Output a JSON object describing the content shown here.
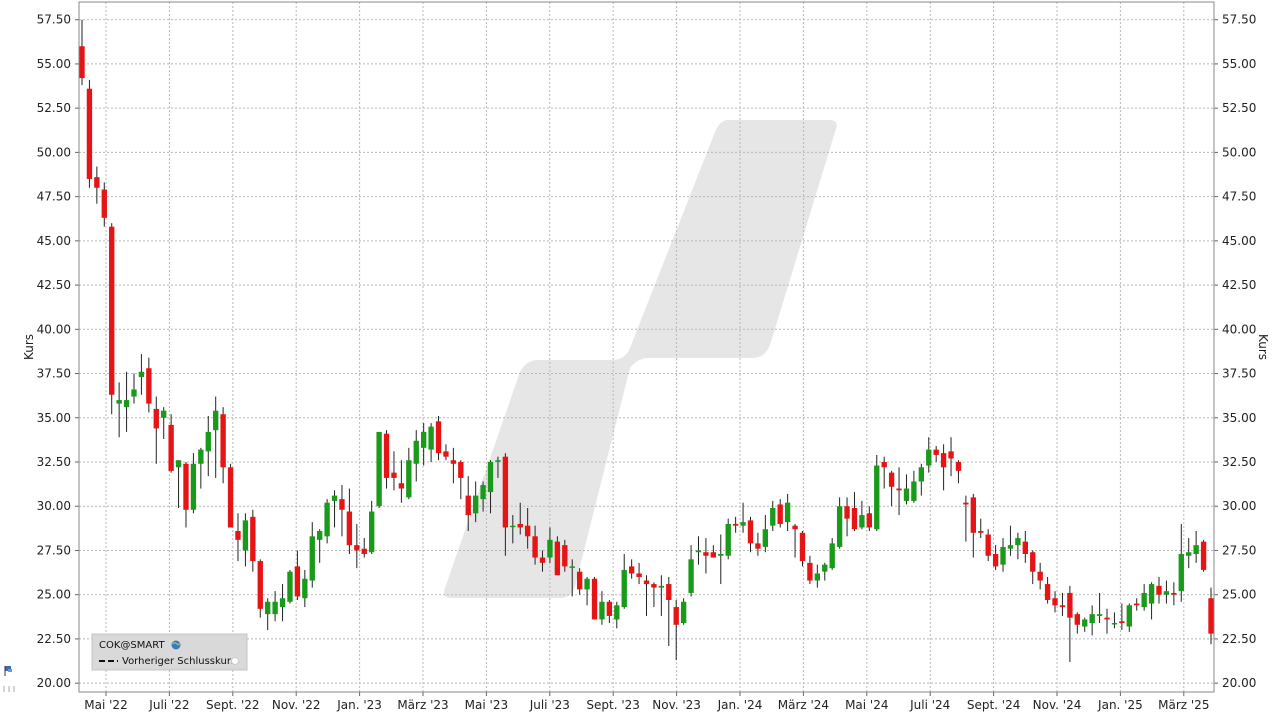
{
  "chart_data": {
    "type": "candlestick",
    "symbol": "COK@SMART",
    "ylabel": "Kurs",
    "ylim": [
      19.5,
      58.5
    ],
    "y_ticks": [
      "20.00",
      "22.50",
      "25.00",
      "27.50",
      "30.00",
      "32.50",
      "35.00",
      "37.50",
      "40.00",
      "42.50",
      "45.00",
      "47.50",
      "50.00",
      "52.50",
      "55.00",
      "57.50"
    ],
    "x_ticks": [
      "Mai '22",
      "Juli '22",
      "Sept. '22",
      "Nov. '22",
      "Jan. '23",
      "März '23",
      "Mai '23",
      "Juli '23",
      "Sept. '23",
      "Nov. '23",
      "Jan. '24",
      "März '24",
      "Mai '24",
      "Juli '24",
      "Sept. '24",
      "Nov. '24",
      "Jan. '25",
      "März '25"
    ],
    "legend": [
      "COK@SMART",
      "Vorheriger Schlusskurs"
    ],
    "grid": true,
    "up_color": "#1a9a1a",
    "down_color": "#e61414",
    "candles": [
      {
        "o": 56.0,
        "h": 57.5,
        "l": 53.8,
        "c": 54.2
      },
      {
        "o": 53.6,
        "h": 54.1,
        "l": 48.0,
        "c": 48.5
      },
      {
        "o": 48.6,
        "h": 49.2,
        "l": 47.1,
        "c": 48.0
      },
      {
        "o": 47.9,
        "h": 48.3,
        "l": 45.8,
        "c": 46.3
      },
      {
        "o": 45.8,
        "h": 46.0,
        "l": 35.2,
        "c": 36.3
      },
      {
        "o": 35.8,
        "h": 37.0,
        "l": 33.9,
        "c": 36.0
      },
      {
        "o": 35.6,
        "h": 37.6,
        "l": 34.2,
        "c": 36.0
      },
      {
        "o": 36.2,
        "h": 37.5,
        "l": 35.8,
        "c": 36.6
      },
      {
        "o": 37.3,
        "h": 38.6,
        "l": 36.3,
        "c": 37.6
      },
      {
        "o": 37.8,
        "h": 38.4,
        "l": 35.3,
        "c": 35.8
      },
      {
        "o": 35.5,
        "h": 36.2,
        "l": 32.4,
        "c": 34.4
      },
      {
        "o": 35.0,
        "h": 35.6,
        "l": 33.8,
        "c": 35.4
      },
      {
        "o": 34.6,
        "h": 35.2,
        "l": 31.9,
        "c": 32.0
      },
      {
        "o": 32.2,
        "h": 32.6,
        "l": 29.9,
        "c": 32.6
      },
      {
        "o": 32.4,
        "h": 32.5,
        "l": 28.8,
        "c": 29.8
      },
      {
        "o": 29.8,
        "h": 33.0,
        "l": 29.6,
        "c": 32.4
      },
      {
        "o": 32.4,
        "h": 33.3,
        "l": 31.0,
        "c": 33.2
      },
      {
        "o": 33.1,
        "h": 35.1,
        "l": 31.7,
        "c": 34.2
      },
      {
        "o": 34.3,
        "h": 36.2,
        "l": 31.6,
        "c": 35.4
      },
      {
        "o": 35.2,
        "h": 35.6,
        "l": 31.3,
        "c": 32.2
      },
      {
        "o": 32.2,
        "h": 32.4,
        "l": 28.8,
        "c": 28.8
      },
      {
        "o": 28.6,
        "h": 29.6,
        "l": 26.9,
        "c": 28.1
      },
      {
        "o": 27.5,
        "h": 29.6,
        "l": 26.6,
        "c": 29.2
      },
      {
        "o": 29.4,
        "h": 29.8,
        "l": 26.3,
        "c": 26.9
      },
      {
        "o": 26.9,
        "h": 27.0,
        "l": 23.7,
        "c": 24.2
      },
      {
        "o": 23.9,
        "h": 24.8,
        "l": 23.0,
        "c": 24.6
      },
      {
        "o": 23.9,
        "h": 25.2,
        "l": 23.5,
        "c": 24.6
      },
      {
        "o": 24.3,
        "h": 25.6,
        "l": 23.5,
        "c": 24.8
      },
      {
        "o": 24.6,
        "h": 26.4,
        "l": 24.5,
        "c": 26.3
      },
      {
        "o": 26.6,
        "h": 27.5,
        "l": 24.7,
        "c": 24.9
      },
      {
        "o": 24.8,
        "h": 26.4,
        "l": 24.3,
        "c": 25.9
      },
      {
        "o": 25.8,
        "h": 29.1,
        "l": 25.4,
        "c": 28.3
      },
      {
        "o": 28.1,
        "h": 28.7,
        "l": 26.8,
        "c": 28.6
      },
      {
        "o": 28.3,
        "h": 30.4,
        "l": 27.9,
        "c": 30.2
      },
      {
        "o": 30.3,
        "h": 30.9,
        "l": 28.8,
        "c": 30.6
      },
      {
        "o": 30.4,
        "h": 31.2,
        "l": 28.3,
        "c": 29.8
      },
      {
        "o": 29.7,
        "h": 31.0,
        "l": 27.3,
        "c": 27.8
      },
      {
        "o": 27.8,
        "h": 29.0,
        "l": 26.5,
        "c": 27.5
      },
      {
        "o": 27.6,
        "h": 28.2,
        "l": 27.1,
        "c": 27.3
      },
      {
        "o": 27.4,
        "h": 30.3,
        "l": 27.3,
        "c": 29.7
      },
      {
        "o": 30.0,
        "h": 34.2,
        "l": 29.9,
        "c": 34.2
      },
      {
        "o": 34.1,
        "h": 34.3,
        "l": 31.0,
        "c": 31.6
      },
      {
        "o": 31.9,
        "h": 33.1,
        "l": 30.9,
        "c": 31.6
      },
      {
        "o": 31.3,
        "h": 32.6,
        "l": 30.2,
        "c": 31.0
      },
      {
        "o": 30.5,
        "h": 33.3,
        "l": 30.4,
        "c": 32.6
      },
      {
        "o": 32.4,
        "h": 34.3,
        "l": 31.4,
        "c": 33.7
      },
      {
        "o": 33.3,
        "h": 34.7,
        "l": 32.3,
        "c": 34.2
      },
      {
        "o": 33.2,
        "h": 34.7,
        "l": 32.5,
        "c": 34.5
      },
      {
        "o": 34.8,
        "h": 35.1,
        "l": 32.6,
        "c": 33.0
      },
      {
        "o": 33.1,
        "h": 33.5,
        "l": 32.6,
        "c": 32.8
      },
      {
        "o": 32.6,
        "h": 33.3,
        "l": 31.3,
        "c": 32.4
      },
      {
        "o": 32.5,
        "h": 32.6,
        "l": 30.4,
        "c": 31.6
      },
      {
        "o": 30.6,
        "h": 31.7,
        "l": 28.6,
        "c": 29.5
      },
      {
        "o": 29.6,
        "h": 31.4,
        "l": 29.1,
        "c": 30.6
      },
      {
        "o": 30.4,
        "h": 31.4,
        "l": 29.7,
        "c": 31.2
      },
      {
        "o": 30.8,
        "h": 32.6,
        "l": 29.6,
        "c": 32.5
      },
      {
        "o": 32.6,
        "h": 32.8,
        "l": 31.6,
        "c": 32.6
      },
      {
        "o": 32.8,
        "h": 33.0,
        "l": 27.2,
        "c": 28.8
      },
      {
        "o": 28.9,
        "h": 29.5,
        "l": 27.9,
        "c": 28.9
      },
      {
        "o": 29.0,
        "h": 30.2,
        "l": 28.4,
        "c": 28.8
      },
      {
        "o": 28.9,
        "h": 29.9,
        "l": 27.6,
        "c": 28.3
      },
      {
        "o": 28.3,
        "h": 28.9,
        "l": 26.7,
        "c": 27.1
      },
      {
        "o": 27.1,
        "h": 27.5,
        "l": 26.3,
        "c": 26.8
      },
      {
        "o": 27.1,
        "h": 28.8,
        "l": 26.8,
        "c": 28.1
      },
      {
        "o": 28.0,
        "h": 28.3,
        "l": 26.1,
        "c": 26.1
      },
      {
        "o": 27.8,
        "h": 28.1,
        "l": 26.3,
        "c": 26.6
      },
      {
        "o": 26.6,
        "h": 27.0,
        "l": 24.9,
        "c": 26.6
      },
      {
        "o": 26.3,
        "h": 26.5,
        "l": 25.0,
        "c": 25.3
      },
      {
        "o": 25.3,
        "h": 26.0,
        "l": 24.4,
        "c": 25.9
      },
      {
        "o": 25.9,
        "h": 26.0,
        "l": 23.6,
        "c": 23.6
      },
      {
        "o": 23.6,
        "h": 25.2,
        "l": 23.3,
        "c": 24.6
      },
      {
        "o": 24.6,
        "h": 24.7,
        "l": 23.4,
        "c": 23.8
      },
      {
        "o": 23.6,
        "h": 24.6,
        "l": 23.1,
        "c": 24.4
      },
      {
        "o": 24.3,
        "h": 27.3,
        "l": 24.2,
        "c": 26.4
      },
      {
        "o": 26.6,
        "h": 27.0,
        "l": 25.9,
        "c": 26.2
      },
      {
        "o": 26.2,
        "h": 26.8,
        "l": 25.6,
        "c": 26.0
      },
      {
        "o": 25.8,
        "h": 26.1,
        "l": 23.8,
        "c": 25.6
      },
      {
        "o": 25.6,
        "h": 25.7,
        "l": 24.3,
        "c": 25.4
      },
      {
        "o": 25.4,
        "h": 26.1,
        "l": 23.8,
        "c": 25.5
      },
      {
        "o": 25.6,
        "h": 26.0,
        "l": 22.1,
        "c": 24.7
      },
      {
        "o": 24.3,
        "h": 24.7,
        "l": 21.3,
        "c": 23.3
      },
      {
        "o": 23.4,
        "h": 24.8,
        "l": 23.3,
        "c": 24.6
      },
      {
        "o": 25.1,
        "h": 27.8,
        "l": 24.9,
        "c": 27.0
      },
      {
        "o": 27.4,
        "h": 28.3,
        "l": 26.7,
        "c": 27.5
      },
      {
        "o": 27.4,
        "h": 28.2,
        "l": 26.2,
        "c": 27.2
      },
      {
        "o": 27.4,
        "h": 27.8,
        "l": 27.2,
        "c": 27.1
      },
      {
        "o": 27.2,
        "h": 28.4,
        "l": 25.6,
        "c": 27.3
      },
      {
        "o": 27.2,
        "h": 29.3,
        "l": 27.0,
        "c": 29.0
      },
      {
        "o": 29.0,
        "h": 29.4,
        "l": 28.5,
        "c": 28.9
      },
      {
        "o": 28.9,
        "h": 30.2,
        "l": 28.5,
        "c": 29.1
      },
      {
        "o": 29.2,
        "h": 29.4,
        "l": 27.4,
        "c": 27.9
      },
      {
        "o": 27.9,
        "h": 28.5,
        "l": 27.2,
        "c": 27.6
      },
      {
        "o": 27.7,
        "h": 29.5,
        "l": 27.4,
        "c": 28.7
      },
      {
        "o": 28.9,
        "h": 30.3,
        "l": 28.6,
        "c": 29.9
      },
      {
        "o": 30.1,
        "h": 30.4,
        "l": 28.8,
        "c": 29.0
      },
      {
        "o": 29.1,
        "h": 30.7,
        "l": 28.6,
        "c": 30.2
      },
      {
        "o": 28.9,
        "h": 29.0,
        "l": 27.1,
        "c": 28.7
      },
      {
        "o": 28.5,
        "h": 28.6,
        "l": 26.6,
        "c": 26.9
      },
      {
        "o": 26.8,
        "h": 27.2,
        "l": 25.6,
        "c": 25.8
      },
      {
        "o": 25.8,
        "h": 26.7,
        "l": 25.4,
        "c": 26.2
      },
      {
        "o": 26.3,
        "h": 26.8,
        "l": 25.8,
        "c": 26.7
      },
      {
        "o": 26.5,
        "h": 28.2,
        "l": 26.4,
        "c": 27.9
      },
      {
        "o": 27.7,
        "h": 30.5,
        "l": 27.6,
        "c": 30.0
      },
      {
        "o": 30.0,
        "h": 30.5,
        "l": 28.3,
        "c": 29.3
      },
      {
        "o": 29.9,
        "h": 30.8,
        "l": 28.6,
        "c": 28.7
      },
      {
        "o": 28.8,
        "h": 30.3,
        "l": 28.7,
        "c": 29.5
      },
      {
        "o": 29.6,
        "h": 30.0,
        "l": 28.6,
        "c": 28.8
      },
      {
        "o": 28.7,
        "h": 32.9,
        "l": 28.6,
        "c": 32.3
      },
      {
        "o": 32.5,
        "h": 32.8,
        "l": 31.0,
        "c": 32.2
      },
      {
        "o": 31.9,
        "h": 32.0,
        "l": 30.0,
        "c": 31.1
      },
      {
        "o": 31.0,
        "h": 32.2,
        "l": 29.5,
        "c": 30.9
      },
      {
        "o": 30.3,
        "h": 31.8,
        "l": 30.1,
        "c": 31.0
      },
      {
        "o": 30.3,
        "h": 32.0,
        "l": 30.2,
        "c": 31.4
      },
      {
        "o": 31.4,
        "h": 32.4,
        "l": 30.6,
        "c": 32.2
      },
      {
        "o": 32.3,
        "h": 33.9,
        "l": 31.9,
        "c": 33.2
      },
      {
        "o": 33.2,
        "h": 33.4,
        "l": 32.5,
        "c": 32.9
      },
      {
        "o": 33.0,
        "h": 33.5,
        "l": 30.9,
        "c": 32.2
      },
      {
        "o": 33.1,
        "h": 33.9,
        "l": 31.7,
        "c": 32.7
      },
      {
        "o": 32.5,
        "h": 32.6,
        "l": 31.3,
        "c": 32.0
      },
      {
        "o": 30.2,
        "h": 30.6,
        "l": 28.0,
        "c": 30.1
      },
      {
        "o": 30.5,
        "h": 30.7,
        "l": 27.1,
        "c": 28.5
      },
      {
        "o": 28.6,
        "h": 29.3,
        "l": 28.2,
        "c": 28.5
      },
      {
        "o": 28.4,
        "h": 28.7,
        "l": 26.9,
        "c": 27.2
      },
      {
        "o": 27.3,
        "h": 27.8,
        "l": 26.4,
        "c": 26.6
      },
      {
        "o": 26.7,
        "h": 28.2,
        "l": 26.3,
        "c": 27.7
      },
      {
        "o": 27.6,
        "h": 28.9,
        "l": 27.2,
        "c": 27.8
      },
      {
        "o": 27.8,
        "h": 28.5,
        "l": 27.0,
        "c": 28.2
      },
      {
        "o": 28.0,
        "h": 28.6,
        "l": 26.8,
        "c": 27.3
      },
      {
        "o": 27.4,
        "h": 27.5,
        "l": 25.6,
        "c": 26.3
      },
      {
        "o": 26.3,
        "h": 26.8,
        "l": 25.3,
        "c": 25.8
      },
      {
        "o": 25.6,
        "h": 26.0,
        "l": 24.5,
        "c": 24.7
      },
      {
        "o": 24.8,
        "h": 25.2,
        "l": 24.0,
        "c": 24.4
      },
      {
        "o": 24.4,
        "h": 25.1,
        "l": 23.8,
        "c": 24.3
      },
      {
        "o": 25.1,
        "h": 25.5,
        "l": 21.2,
        "c": 23.7
      },
      {
        "o": 23.9,
        "h": 24.0,
        "l": 22.8,
        "c": 23.3
      },
      {
        "o": 23.2,
        "h": 23.7,
        "l": 22.9,
        "c": 23.6
      },
      {
        "o": 23.4,
        "h": 24.4,
        "l": 22.7,
        "c": 23.9
      },
      {
        "o": 23.8,
        "h": 25.1,
        "l": 23.4,
        "c": 23.9
      },
      {
        "o": 23.7,
        "h": 24.2,
        "l": 22.8,
        "c": 23.6
      },
      {
        "o": 23.4,
        "h": 24.0,
        "l": 23.1,
        "c": 23.4
      },
      {
        "o": 23.5,
        "h": 24.5,
        "l": 23.0,
        "c": 23.4
      },
      {
        "o": 23.2,
        "h": 24.5,
        "l": 22.9,
        "c": 24.4
      },
      {
        "o": 24.5,
        "h": 24.8,
        "l": 24.1,
        "c": 24.4
      },
      {
        "o": 24.3,
        "h": 25.6,
        "l": 24.1,
        "c": 25.1
      },
      {
        "o": 24.5,
        "h": 25.7,
        "l": 23.6,
        "c": 25.6
      },
      {
        "o": 25.5,
        "h": 26.0,
        "l": 24.5,
        "c": 25.0
      },
      {
        "o": 25.0,
        "h": 25.8,
        "l": 24.5,
        "c": 25.2
      },
      {
        "o": 25.1,
        "h": 25.7,
        "l": 24.4,
        "c": 25.0
      },
      {
        "o": 25.2,
        "h": 29.0,
        "l": 24.6,
        "c": 27.3
      },
      {
        "o": 27.2,
        "h": 28.2,
        "l": 26.5,
        "c": 27.4
      },
      {
        "o": 27.3,
        "h": 28.6,
        "l": 26.8,
        "c": 27.8
      },
      {
        "o": 28.0,
        "h": 28.1,
        "l": 26.3,
        "c": 26.4
      },
      {
        "o": 24.8,
        "h": 25.4,
        "l": 22.2,
        "c": 22.8
      }
    ]
  }
}
